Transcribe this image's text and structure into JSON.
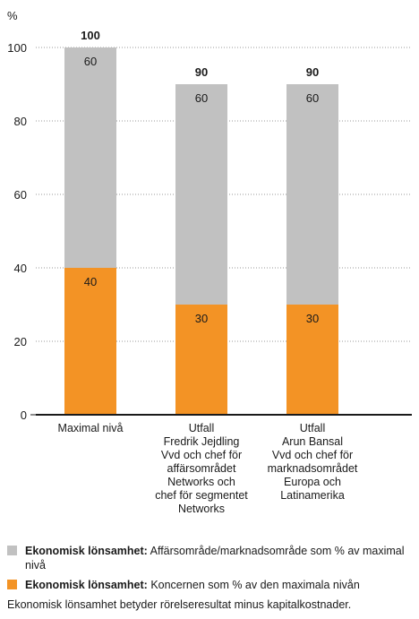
{
  "chart_data": {
    "type": "bar",
    "stacked": true,
    "ylabel": "%",
    "ylim": [
      0,
      100
    ],
    "yticks": [
      0,
      20,
      40,
      60,
      80,
      100
    ],
    "grid": "dotted-horizontal",
    "categories": [
      [
        "Maximal nivå"
      ],
      [
        "Utfall",
        "Fredrik Jejdling",
        "Vvd och chef för",
        "affärsområdet",
        "Networks och",
        "chef för segmentet",
        "Networks"
      ],
      [
        "Utfall",
        "Arun Bansal",
        "Vvd och chef för",
        "marknadsområdet",
        "Europa och",
        "Latinamerika"
      ]
    ],
    "totals": [
      100,
      90,
      90
    ],
    "series": [
      {
        "key": "koncern",
        "values": [
          40,
          30,
          30
        ],
        "color": "#f39325"
      },
      {
        "key": "affar",
        "values": [
          60,
          60,
          60
        ],
        "color": "#c1c1c1"
      }
    ]
  },
  "legend": [
    {
      "bold": "Ekonomisk lönsamhet:",
      "text": " Affärsområde/marknadsområde som % av maximal nivå",
      "color": "#c1c1c1"
    },
    {
      "bold": "Ekonomisk lönsamhet:",
      "text": " Koncernen som % av den maximala nivån",
      "color": "#f39325"
    }
  ],
  "footnote": "Ekonomisk lönsamhet betyder rörelseresultat minus kapitalkostnader."
}
